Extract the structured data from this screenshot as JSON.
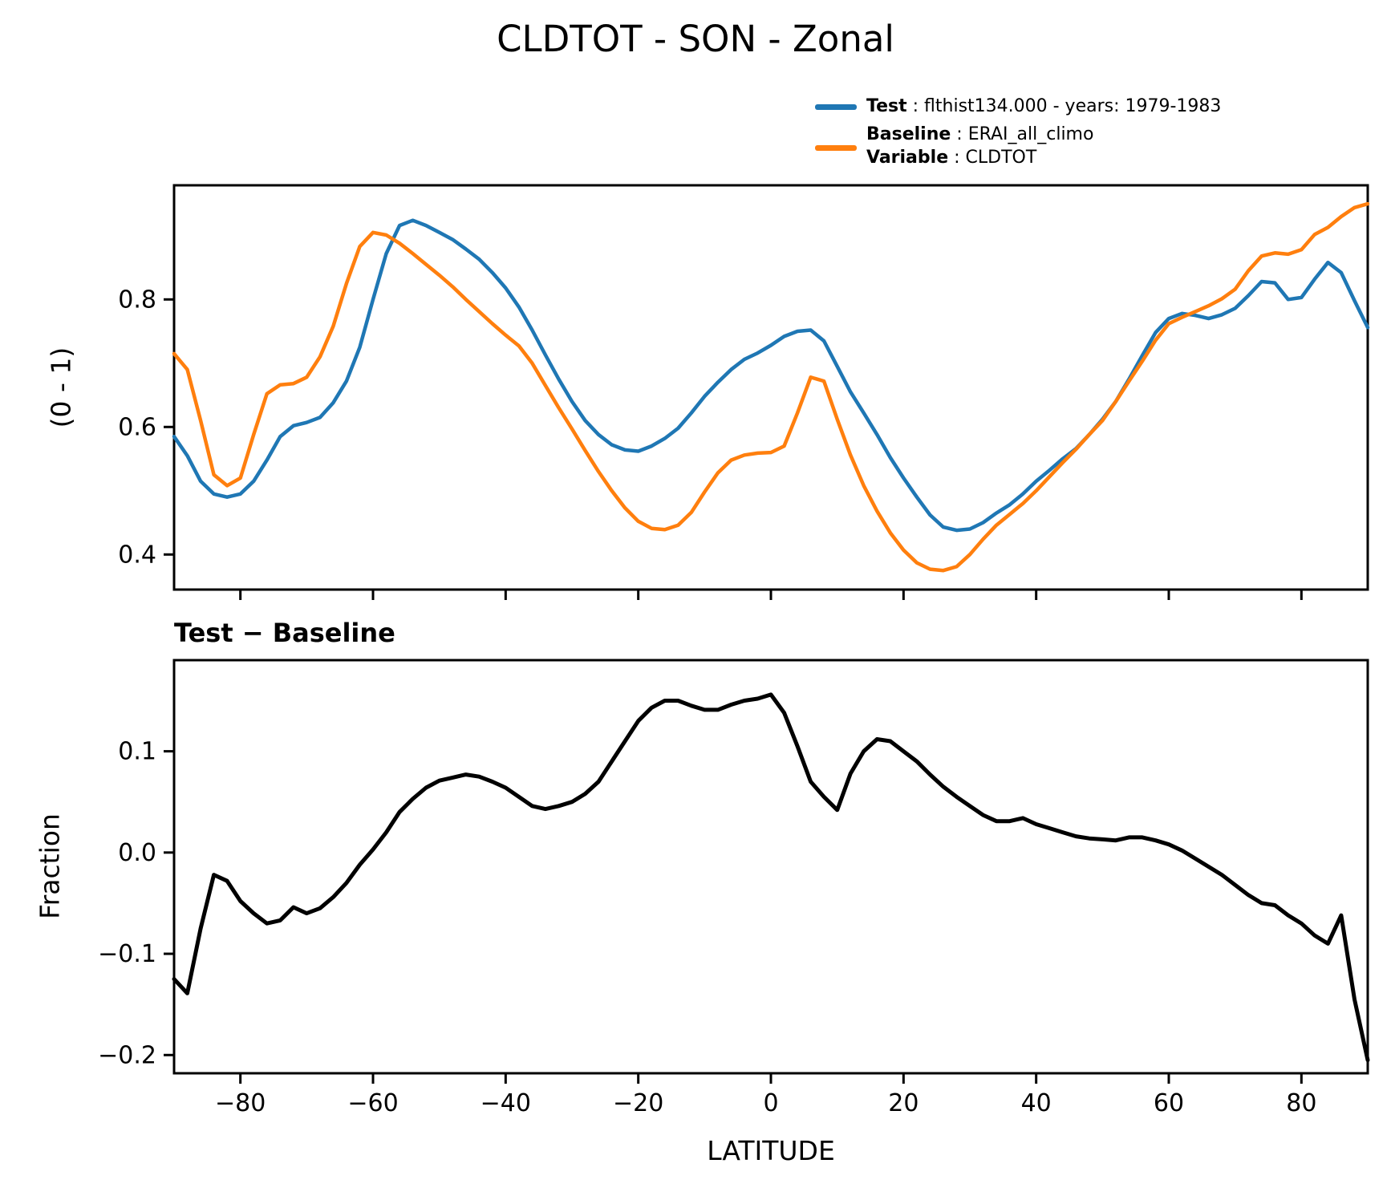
{
  "figure": {
    "title": "CLDTOT - SON - Zonal",
    "background_color": "#ffffff"
  },
  "legend": {
    "entries": [
      {
        "label": "Test",
        "value": " : flthist134.000 - years: 1979-1983",
        "color": "#1f77b4"
      },
      {
        "label": "Baseline",
        "value": " : ERAI_all_climo",
        "color": "#ff7f0e"
      },
      {
        "label": "Variable",
        "value": " : CLDTOT",
        "color": null
      }
    ]
  },
  "chart_data": [
    {
      "type": "line",
      "title": "CLDTOT - SON - Zonal",
      "xlabel": "",
      "ylabel": "(0 - 1)",
      "xlim": [
        -90,
        90
      ],
      "ylim": [
        0.345,
        0.979
      ],
      "grid": false,
      "legend_position": "upper right of figure",
      "xticks": [
        -80,
        -60,
        -40,
        -20,
        0,
        20,
        40,
        60,
        80
      ],
      "xtick_labels": [],
      "yticks": [
        0.4,
        0.6,
        0.8
      ],
      "ytick_labels": [
        "0.4",
        "0.6",
        "0.8"
      ],
      "x": [
        -90,
        -88,
        -86,
        -84,
        -82,
        -80,
        -78,
        -76,
        -74,
        -72,
        -70,
        -68,
        -66,
        -64,
        -62,
        -60,
        -58,
        -56,
        -54,
        -52,
        -50,
        -48,
        -46,
        -44,
        -42,
        -40,
        -38,
        -36,
        -34,
        -32,
        -30,
        -28,
        -26,
        -24,
        -22,
        -20,
        -18,
        -16,
        -14,
        -12,
        -10,
        -8,
        -6,
        -4,
        -2,
        0,
        2,
        4,
        6,
        8,
        10,
        12,
        14,
        16,
        18,
        20,
        22,
        24,
        26,
        28,
        30,
        32,
        34,
        36,
        38,
        40,
        42,
        44,
        46,
        48,
        50,
        52,
        54,
        56,
        58,
        60,
        62,
        64,
        66,
        68,
        70,
        72,
        74,
        76,
        78,
        80,
        82,
        84,
        86,
        88,
        90
      ],
      "series": [
        {
          "name": "Test",
          "color": "#1f77b4",
          "values": [
            0.585,
            0.555,
            0.515,
            0.495,
            0.49,
            0.495,
            0.515,
            0.548,
            0.585,
            0.602,
            0.607,
            0.615,
            0.638,
            0.672,
            0.725,
            0.8,
            0.872,
            0.916,
            0.924,
            0.916,
            0.905,
            0.894,
            0.879,
            0.863,
            0.842,
            0.818,
            0.788,
            0.752,
            0.713,
            0.675,
            0.64,
            0.61,
            0.588,
            0.572,
            0.564,
            0.562,
            0.57,
            0.582,
            0.598,
            0.622,
            0.648,
            0.67,
            0.69,
            0.706,
            0.716,
            0.728,
            0.742,
            0.75,
            0.752,
            0.735,
            0.695,
            0.655,
            0.622,
            0.588,
            0.552,
            0.52,
            0.49,
            0.462,
            0.443,
            0.438,
            0.44,
            0.45,
            0.465,
            0.478,
            0.495,
            0.515,
            0.532,
            0.55,
            0.566,
            0.588,
            0.612,
            0.64,
            0.675,
            0.712,
            0.748,
            0.77,
            0.778,
            0.775,
            0.77,
            0.776,
            0.786,
            0.806,
            0.828,
            0.826,
            0.8,
            0.803,
            0.832,
            0.858,
            0.842,
            0.798,
            0.756
          ]
        },
        {
          "name": "Baseline",
          "color": "#ff7f0e",
          "values": [
            0.715,
            0.69,
            0.61,
            0.525,
            0.508,
            0.52,
            0.588,
            0.652,
            0.666,
            0.668,
            0.678,
            0.71,
            0.758,
            0.825,
            0.883,
            0.905,
            0.901,
            0.888,
            0.872,
            0.855,
            0.838,
            0.82,
            0.8,
            0.781,
            0.762,
            0.744,
            0.727,
            0.7,
            0.665,
            0.63,
            0.597,
            0.563,
            0.53,
            0.5,
            0.473,
            0.452,
            0.441,
            0.439,
            0.446,
            0.466,
            0.498,
            0.528,
            0.548,
            0.556,
            0.559,
            0.56,
            0.57,
            0.622,
            0.678,
            0.672,
            0.612,
            0.556,
            0.508,
            0.468,
            0.434,
            0.407,
            0.387,
            0.377,
            0.375,
            0.381,
            0.4,
            0.424,
            0.446,
            0.463,
            0.48,
            0.5,
            0.522,
            0.544,
            0.565,
            0.588,
            0.61,
            0.64,
            0.672,
            0.703,
            0.736,
            0.762,
            0.772,
            0.781,
            0.79,
            0.801,
            0.816,
            0.845,
            0.868,
            0.873,
            0.871,
            0.878,
            0.902,
            0.913,
            0.93,
            0.944,
            0.95
          ]
        }
      ]
    },
    {
      "type": "line",
      "title": "Test − Baseline",
      "xlabel": "LATITUDE",
      "ylabel": "Fraction",
      "xlim": [
        -90,
        90
      ],
      "ylim": [
        -0.218,
        0.19
      ],
      "grid": false,
      "xticks": [
        -80,
        -60,
        -40,
        -20,
        0,
        20,
        40,
        60,
        80
      ],
      "xtick_labels": [
        "−80",
        "−60",
        "−40",
        "−20",
        "0",
        "20",
        "40",
        "60",
        "80"
      ],
      "yticks": [
        0.1,
        0.0,
        -0.1,
        -0.2
      ],
      "ytick_labels": [
        "0.1",
        "0.0",
        "−0.1",
        "−0.2"
      ],
      "x": [
        -90,
        -88,
        -86,
        -84,
        -82,
        -80,
        -78,
        -76,
        -74,
        -72,
        -70,
        -68,
        -66,
        -64,
        -62,
        -60,
        -58,
        -56,
        -54,
        -52,
        -50,
        -48,
        -46,
        -44,
        -42,
        -40,
        -38,
        -36,
        -34,
        -32,
        -30,
        -28,
        -26,
        -24,
        -22,
        -20,
        -18,
        -16,
        -14,
        -12,
        -10,
        -8,
        -6,
        -4,
        -2,
        0,
        2,
        4,
        6,
        8,
        10,
        12,
        14,
        16,
        18,
        20,
        22,
        24,
        26,
        28,
        30,
        32,
        34,
        36,
        38,
        40,
        42,
        44,
        46,
        48,
        50,
        52,
        54,
        56,
        58,
        60,
        62,
        64,
        66,
        68,
        70,
        72,
        74,
        76,
        78,
        80,
        82,
        84,
        86,
        88,
        90
      ],
      "series": [
        {
          "name": "Test − Baseline",
          "color": "#000000",
          "values": [
            -0.125,
            -0.139,
            -0.075,
            -0.022,
            -0.028,
            -0.048,
            -0.06,
            -0.07,
            -0.067,
            -0.054,
            -0.06,
            -0.055,
            -0.044,
            -0.03,
            -0.012,
            0.003,
            0.02,
            0.04,
            0.053,
            0.064,
            0.071,
            0.074,
            0.077,
            0.075,
            0.07,
            0.064,
            0.055,
            0.046,
            0.043,
            0.046,
            0.05,
            0.058,
            0.07,
            0.09,
            0.11,
            0.13,
            0.143,
            0.15,
            0.15,
            0.145,
            0.141,
            0.141,
            0.146,
            0.15,
            0.152,
            0.156,
            0.138,
            0.105,
            0.07,
            0.055,
            0.042,
            0.078,
            0.1,
            0.112,
            0.11,
            0.1,
            0.09,
            0.077,
            0.065,
            0.055,
            0.046,
            0.037,
            0.031,
            0.031,
            0.034,
            0.028,
            0.024,
            0.02,
            0.016,
            0.014,
            0.013,
            0.012,
            0.015,
            0.015,
            0.012,
            0.008,
            0.002,
            -0.006,
            -0.014,
            -0.022,
            -0.032,
            -0.042,
            -0.05,
            -0.052,
            -0.062,
            -0.07,
            -0.082,
            -0.09,
            -0.062,
            -0.145,
            -0.205
          ]
        }
      ]
    }
  ]
}
